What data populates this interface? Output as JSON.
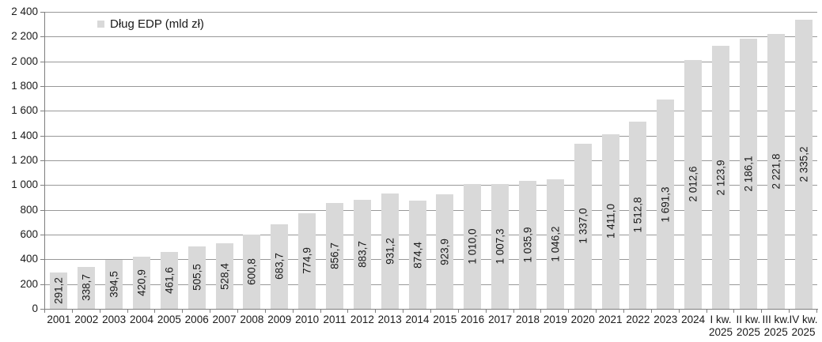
{
  "legend": {
    "label": "Dług EDP (mld zł)"
  },
  "colors": {
    "background": "#ffffff",
    "bar": "#d9d9d9",
    "gridline": "#989898",
    "axis": "#7f7f7f",
    "text": "#1a1a1a"
  },
  "chart_data": {
    "type": "bar",
    "title": "",
    "xlabel": "",
    "ylabel": "",
    "legend_label": "Dług EDP (mld zł)",
    "legend_position": "top-left",
    "grid": true,
    "ylim": [
      0,
      2400
    ],
    "ytick_step": 200,
    "ytick_labels": [
      "0",
      "200",
      "400",
      "600",
      "800",
      "1 000",
      "1 200",
      "1 400",
      "1 600",
      "1 800",
      "2 000",
      "2 200",
      "2 400"
    ],
    "categories": [
      "2001",
      "2002",
      "2003",
      "2004",
      "2005",
      "2006",
      "2007",
      "2008",
      "2009",
      "2010",
      "2011",
      "2012",
      "2013",
      "2014",
      "2015",
      "2016",
      "2017",
      "2018",
      "2019",
      "2020",
      "2021",
      "2022",
      "2023",
      "2024",
      "I kw. 2025",
      "II kw. 2025",
      "III kw. 2025",
      "IV kw. 2025"
    ],
    "category_lines": [
      [
        "2001"
      ],
      [
        "2002"
      ],
      [
        "2003"
      ],
      [
        "2004"
      ],
      [
        "2005"
      ],
      [
        "2006"
      ],
      [
        "2007"
      ],
      [
        "2008"
      ],
      [
        "2009"
      ],
      [
        "2010"
      ],
      [
        "2011"
      ],
      [
        "2012"
      ],
      [
        "2013"
      ],
      [
        "2014"
      ],
      [
        "2015"
      ],
      [
        "2016"
      ],
      [
        "2017"
      ],
      [
        "2018"
      ],
      [
        "2019"
      ],
      [
        "2020"
      ],
      [
        "2021"
      ],
      [
        "2022"
      ],
      [
        "2023"
      ],
      [
        "2024"
      ],
      [
        "I kw.",
        "2025"
      ],
      [
        "II kw.",
        "2025"
      ],
      [
        "III kw.",
        "2025"
      ],
      [
        "IV kw.",
        "2025"
      ]
    ],
    "series": [
      {
        "name": "Dług EDP (mld zł)",
        "values": [
          291.2,
          338.7,
          394.5,
          420.9,
          461.6,
          505.5,
          528.4,
          600.8,
          683.7,
          774.9,
          856.7,
          883.7,
          931.2,
          874.4,
          923.9,
          1010.0,
          1007.3,
          1035.9,
          1046.2,
          1337.0,
          1411.0,
          1512.8,
          1691.3,
          2012.6,
          2123.9,
          2186.1,
          2221.8,
          2335.2
        ],
        "value_labels": [
          "291,2",
          "338,7",
          "394,5",
          "420,9",
          "461,6",
          "505,5",
          "528,4",
          "600,8",
          "683,7",
          "774,9",
          "856,7",
          "883,7",
          "931,2",
          "874,4",
          "923,9",
          "1 010,0",
          "1 007,3",
          "1 035,9",
          "1 046,2",
          "1 337,0",
          "1 411,0",
          "1 512,8",
          "1 691,3",
          "2 012,6",
          "2 123,9",
          "2 186,1",
          "2 221,8",
          "2 335,2"
        ]
      }
    ]
  }
}
